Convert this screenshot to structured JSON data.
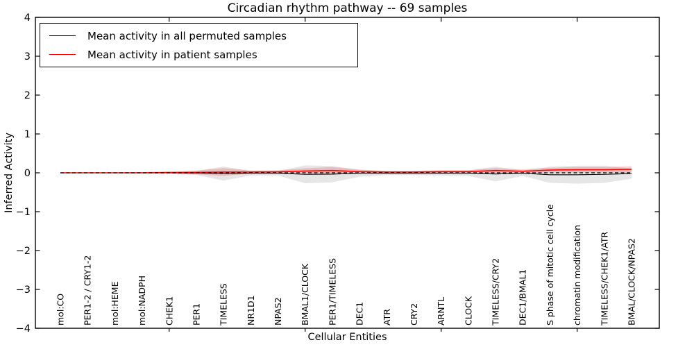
{
  "chart_data": {
    "type": "line",
    "title": "Circadian rhythm pathway -- 69 samples",
    "xlabel": "Cellular Entities",
    "ylabel": "Inferred Activity",
    "ylim": [
      -4,
      4
    ],
    "yticks": [
      4,
      3,
      2,
      1,
      0,
      -1,
      -2,
      -3,
      -4
    ],
    "xticks_major": [
      5,
      10,
      15,
      20
    ],
    "grid": false,
    "legend_position": "upper left",
    "zero_line_style": "dashed",
    "categories": [
      "mol:CO",
      "PER1-2 / CRY1-2",
      "mol:HEME",
      "mol:NADPH",
      "CHEK1",
      "PER1",
      "TIMELESS",
      "NR1D1",
      "NPAS2",
      "BMAL1/CLOCK",
      "PER1/TIMELESS",
      "DEC1",
      "ATR",
      "CRY2",
      "ARNTL",
      "CLOCK",
      "TIMELESS/CRY2",
      "DEC1/BMAL1",
      "S phase of mitotic cell cycle",
      "chromatin modification",
      "TIMELESS/CHEK1/ATR",
      "BMAL/CLOCK/NPAS2"
    ],
    "series": [
      {
        "name": "Mean activity in all permuted samples",
        "color": "#000000",
        "band_color": "#c8c8c8",
        "values": [
          0,
          0,
          0,
          0,
          0,
          -0.005,
          -0.02,
          -0.01,
          -0.01,
          -0.04,
          -0.035,
          -0.01,
          -0.01,
          -0.01,
          -0.01,
          -0.01,
          -0.03,
          -0.01,
          -0.05,
          -0.05,
          -0.04,
          -0.02
        ],
        "band_halfwidth": [
          0.01,
          0.01,
          0.01,
          0.02,
          0.03,
          0.05,
          0.18,
          0.06,
          0.06,
          0.23,
          0.21,
          0.09,
          0.05,
          0.05,
          0.06,
          0.07,
          0.19,
          0.07,
          0.21,
          0.23,
          0.22,
          0.13
        ]
      },
      {
        "name": "Mean activity in patient samples",
        "color": "#ff0000",
        "band_color": "#ff9999",
        "values": [
          0,
          0,
          0,
          0,
          0.005,
          0.01,
          0.02,
          0.02,
          0.025,
          0.045,
          0.06,
          0.03,
          0.02,
          0.02,
          0.03,
          0.03,
          0.06,
          0.04,
          0.07,
          0.08,
          0.08,
          0.09
        ],
        "band_halfwidth": [
          0.005,
          0.005,
          0.01,
          0.015,
          0.03,
          0.05,
          0.1,
          0.04,
          0.04,
          0.07,
          0.09,
          0.05,
          0.03,
          0.03,
          0.04,
          0.04,
          0.06,
          0.05,
          0.06,
          0.07,
          0.07,
          0.08
        ]
      }
    ]
  }
}
